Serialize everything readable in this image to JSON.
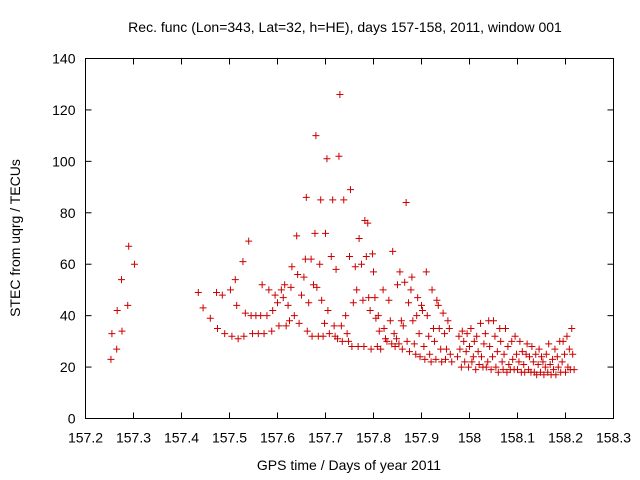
{
  "chart_data": {
    "type": "scatter",
    "title": "Rec. func (Lon=343, Lat=32, h=HE), days 157-158, 2011, window 001",
    "xlabel": "GPS time / Days of year 2011",
    "ylabel": "STEC from uqrg / TECUs",
    "xlim": [
      157.2,
      158.3
    ],
    "ylim": [
      0,
      140
    ],
    "xticks": [
      "157.2",
      "157.3",
      "157.4",
      "157.5",
      "157.6",
      "157.7",
      "157.8",
      "157.9",
      "158",
      "158.1",
      "158.2",
      "158.3"
    ],
    "yticks": [
      "0",
      "20",
      "40",
      "60",
      "80",
      "100",
      "120",
      "140"
    ],
    "grid": false,
    "legend": "none",
    "marker": "+",
    "marker_color": "#cc0000",
    "points": [
      [
        157.253,
        23
      ],
      [
        157.255,
        33
      ],
      [
        157.265,
        27
      ],
      [
        157.266,
        42
      ],
      [
        157.275,
        54
      ],
      [
        157.276,
        34
      ],
      [
        157.288,
        44
      ],
      [
        157.29,
        67
      ],
      [
        157.302,
        60
      ],
      [
        157.435,
        49
      ],
      [
        157.445,
        43
      ],
      [
        157.46,
        39
      ],
      [
        157.473,
        49
      ],
      [
        157.475,
        35
      ],
      [
        157.485,
        48
      ],
      [
        157.49,
        33
      ],
      [
        157.502,
        50
      ],
      [
        157.505,
        32
      ],
      [
        157.512,
        54
      ],
      [
        157.515,
        44
      ],
      [
        157.518,
        31
      ],
      [
        157.528,
        61
      ],
      [
        157.53,
        32
      ],
      [
        157.533,
        41
      ],
      [
        157.54,
        69
      ],
      [
        157.545,
        40
      ],
      [
        157.548,
        33
      ],
      [
        157.555,
        40
      ],
      [
        157.56,
        33
      ],
      [
        157.565,
        40
      ],
      [
        157.568,
        52
      ],
      [
        157.572,
        33
      ],
      [
        157.578,
        40
      ],
      [
        157.582,
        50
      ],
      [
        157.588,
        34
      ],
      [
        157.59,
        42
      ],
      [
        157.595,
        48
      ],
      [
        157.6,
        45
      ],
      [
        157.603,
        36
      ],
      [
        157.608,
        50
      ],
      [
        157.612,
        47
      ],
      [
        157.615,
        52
      ],
      [
        157.618,
        36
      ],
      [
        157.622,
        44
      ],
      [
        157.625,
        38
      ],
      [
        157.628,
        51
      ],
      [
        157.63,
        59
      ],
      [
        157.635,
        40
      ],
      [
        157.64,
        71
      ],
      [
        157.642,
        56
      ],
      [
        157.645,
        37
      ],
      [
        157.65,
        48
      ],
      [
        157.655,
        55
      ],
      [
        157.658,
        62
      ],
      [
        157.66,
        86
      ],
      [
        157.662,
        34
      ],
      [
        157.665,
        45
      ],
      [
        157.67,
        62
      ],
      [
        157.672,
        32
      ],
      [
        157.675,
        52
      ],
      [
        157.678,
        72
      ],
      [
        157.68,
        110
      ],
      [
        157.682,
        51
      ],
      [
        157.685,
        32
      ],
      [
        157.688,
        60
      ],
      [
        157.69,
        85
      ],
      [
        157.692,
        46
      ],
      [
        157.695,
        32
      ],
      [
        157.698,
        37
      ],
      [
        157.7,
        72
      ],
      [
        157.703,
        101
      ],
      [
        157.705,
        42
      ],
      [
        157.708,
        33
      ],
      [
        157.712,
        63
      ],
      [
        157.715,
        85
      ],
      [
        157.718,
        36
      ],
      [
        157.72,
        32
      ],
      [
        157.722,
        58
      ],
      [
        157.725,
        31
      ],
      [
        157.728,
        102
      ],
      [
        157.73,
        126
      ],
      [
        157.733,
        36
      ],
      [
        157.735,
        30
      ],
      [
        157.738,
        85
      ],
      [
        157.742,
        40
      ],
      [
        157.745,
        33
      ],
      [
        157.748,
        30
      ],
      [
        157.75,
        63
      ],
      [
        157.752,
        89
      ],
      [
        157.755,
        28
      ],
      [
        157.758,
        45
      ],
      [
        157.762,
        59
      ],
      [
        157.765,
        50
      ],
      [
        157.768,
        28
      ],
      [
        157.77,
        70
      ],
      [
        157.775,
        60
      ],
      [
        157.778,
        46
      ],
      [
        157.78,
        28
      ],
      [
        157.782,
        77
      ],
      [
        157.785,
        63
      ],
      [
        157.788,
        76
      ],
      [
        157.79,
        47
      ],
      [
        157.793,
        42
      ],
      [
        157.795,
        27
      ],
      [
        157.798,
        64
      ],
      [
        157.8,
        57
      ],
      [
        157.803,
        47
      ],
      [
        157.805,
        39
      ],
      [
        157.808,
        28
      ],
      [
        157.81,
        40
      ],
      [
        157.812,
        34
      ],
      [
        157.815,
        27
      ],
      [
        157.82,
        50
      ],
      [
        157.822,
        35
      ],
      [
        157.825,
        31
      ],
      [
        157.828,
        30
      ],
      [
        157.832,
        46
      ],
      [
        157.835,
        38
      ],
      [
        157.838,
        29
      ],
      [
        157.84,
        65
      ],
      [
        157.843,
        33
      ],
      [
        157.845,
        28
      ],
      [
        157.848,
        31
      ],
      [
        157.85,
        52
      ],
      [
        157.853,
        29
      ],
      [
        157.855,
        57
      ],
      [
        157.858,
        38
      ],
      [
        157.86,
        27
      ],
      [
        157.862,
        36
      ],
      [
        157.865,
        53
      ],
      [
        157.868,
        84
      ],
      [
        157.87,
        30
      ],
      [
        157.873,
        45
      ],
      [
        157.875,
        26
      ],
      [
        157.878,
        50
      ],
      [
        157.88,
        55
      ],
      [
        157.882,
        38
      ],
      [
        157.885,
        29
      ],
      [
        157.888,
        25
      ],
      [
        157.89,
        40
      ],
      [
        157.892,
        47
      ],
      [
        157.895,
        33
      ],
      [
        157.897,
        24
      ],
      [
        157.9,
        44
      ],
      [
        157.902,
        42
      ],
      [
        157.905,
        28
      ],
      [
        157.907,
        23
      ],
      [
        157.91,
        57
      ],
      [
        157.912,
        40
      ],
      [
        157.915,
        32
      ],
      [
        157.917,
        25
      ],
      [
        157.92,
        22
      ],
      [
        157.922,
        50
      ],
      [
        157.925,
        35
      ],
      [
        157.927,
        30
      ],
      [
        157.93,
        23
      ],
      [
        157.932,
        46
      ],
      [
        157.935,
        44
      ],
      [
        157.937,
        35
      ],
      [
        157.94,
        27
      ],
      [
        157.942,
        22
      ],
      [
        157.945,
        41
      ],
      [
        157.948,
        33
      ],
      [
        157.95,
        23
      ],
      [
        157.952,
        27
      ],
      [
        157.955,
        38
      ],
      [
        157.958,
        35
      ],
      [
        157.96,
        25
      ],
      [
        157.963,
        22
      ],
      [
        157.975,
        24
      ],
      [
        157.978,
        32
      ],
      [
        157.98,
        27
      ],
      [
        157.983,
        20
      ],
      [
        157.985,
        34
      ],
      [
        157.988,
        30
      ],
      [
        157.99,
        22
      ],
      [
        157.993,
        26
      ],
      [
        157.995,
        33
      ],
      [
        157.998,
        20
      ],
      [
        158.0,
        28
      ],
      [
        158.003,
        35
      ],
      [
        158.005,
        22
      ],
      [
        158.008,
        24
      ],
      [
        158.01,
        30
      ],
      [
        158.013,
        19
      ],
      [
        158.015,
        32
      ],
      [
        158.018,
        26
      ],
      [
        158.02,
        21
      ],
      [
        158.023,
        37
      ],
      [
        158.025,
        24
      ],
      [
        158.028,
        20
      ],
      [
        158.03,
        29
      ],
      [
        158.033,
        33
      ],
      [
        158.035,
        20
      ],
      [
        158.038,
        22
      ],
      [
        158.04,
        38
      ],
      [
        158.042,
        28
      ],
      [
        158.045,
        19
      ],
      [
        158.048,
        24
      ],
      [
        158.05,
        38
      ],
      [
        158.053,
        32
      ],
      [
        158.055,
        20
      ],
      [
        158.058,
        26
      ],
      [
        158.06,
        18
      ],
      [
        158.063,
        35
      ],
      [
        158.065,
        30
      ],
      [
        158.068,
        22
      ],
      [
        158.07,
        19
      ],
      [
        158.072,
        25
      ],
      [
        158.075,
        35
      ],
      [
        158.078,
        18
      ],
      [
        158.08,
        28
      ],
      [
        158.082,
        21
      ],
      [
        158.085,
        19
      ],
      [
        158.088,
        30
      ],
      [
        158.09,
        23
      ],
      [
        158.093,
        19
      ],
      [
        158.095,
        32
      ],
      [
        158.098,
        25
      ],
      [
        158.1,
        19
      ],
      [
        158.103,
        22
      ],
      [
        158.105,
        30
      ],
      [
        158.108,
        18
      ],
      [
        158.11,
        26
      ],
      [
        158.113,
        21
      ],
      [
        158.115,
        18
      ],
      [
        158.118,
        25
      ],
      [
        158.12,
        29
      ],
      [
        158.123,
        19
      ],
      [
        158.125,
        24
      ],
      [
        158.128,
        18
      ],
      [
        158.13,
        28
      ],
      [
        158.133,
        22
      ],
      [
        158.135,
        18
      ],
      [
        158.138,
        25
      ],
      [
        158.14,
        17
      ],
      [
        158.143,
        21
      ],
      [
        158.145,
        27
      ],
      [
        158.148,
        18
      ],
      [
        158.15,
        24
      ],
      [
        158.153,
        22
      ],
      [
        158.155,
        17
      ],
      [
        158.158,
        20
      ],
      [
        158.16,
        25
      ],
      [
        158.163,
        18
      ],
      [
        158.165,
        29
      ],
      [
        158.168,
        21
      ],
      [
        158.17,
        17
      ],
      [
        158.173,
        23
      ],
      [
        158.175,
        19
      ],
      [
        158.178,
        27
      ],
      [
        158.18,
        17
      ],
      [
        158.183,
        24
      ],
      [
        158.185,
        20
      ],
      [
        158.188,
        30
      ],
      [
        158.19,
        18
      ],
      [
        158.193,
        22
      ],
      [
        158.195,
        30
      ],
      [
        158.198,
        25
      ],
      [
        158.2,
        18
      ],
      [
        158.203,
        32
      ],
      [
        158.205,
        20
      ],
      [
        158.208,
        27
      ],
      [
        158.21,
        19
      ],
      [
        158.213,
        35
      ],
      [
        158.215,
        25
      ],
      [
        158.218,
        19
      ]
    ]
  }
}
